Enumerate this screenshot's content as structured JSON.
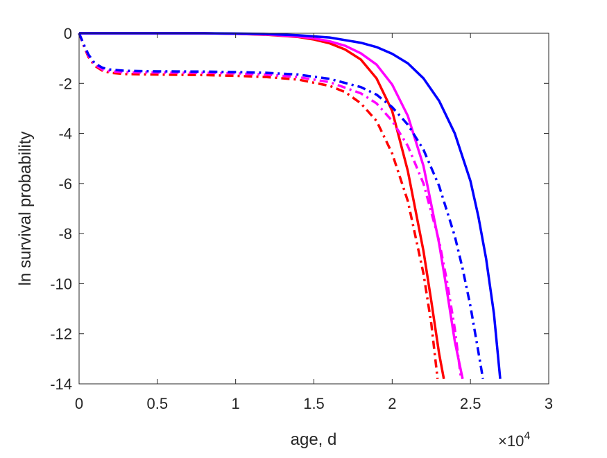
{
  "chart_data": {
    "type": "line",
    "title": "",
    "xlabel": "age, d",
    "ylabel": "ln survival probability",
    "xlim": [
      0,
      30000
    ],
    "ylim": [
      -14,
      0
    ],
    "x_tick_labels": [
      "0",
      "0.5",
      "1",
      "1.5",
      "2",
      "2.5",
      "3"
    ],
    "x_ticks": [
      0,
      5000,
      10000,
      15000,
      20000,
      25000,
      30000
    ],
    "x_exponent": {
      "base": "×10",
      "power": "4"
    },
    "y_tick_labels": [
      "0",
      "-2",
      "-4",
      "-6",
      "-8",
      "-10",
      "-12",
      "-14"
    ],
    "y_ticks": [
      0,
      -2,
      -4,
      -6,
      -8,
      -10,
      -12,
      -14
    ],
    "grid": false,
    "legend": false,
    "series": [
      {
        "color": "#ff0000",
        "style": "solid",
        "x": [
          0,
          2000,
          4000,
          6000,
          8000,
          10000,
          12000,
          14000,
          15000,
          16000,
          17000,
          18000,
          19000,
          20000,
          21000,
          22000,
          22500,
          23000,
          23300
        ],
        "y": [
          0,
          0,
          0,
          0,
          0,
          -0.02,
          -0.06,
          -0.15,
          -0.25,
          -0.4,
          -0.65,
          -1.05,
          -1.8,
          -3.1,
          -5.5,
          -8.7,
          -10.7,
          -12.8,
          -13.8
        ]
      },
      {
        "color": "#ff00ff",
        "style": "solid",
        "x": [
          0,
          2000,
          4000,
          6000,
          8000,
          10000,
          12000,
          14000,
          15000,
          16000,
          17000,
          18000,
          19000,
          20000,
          21000,
          22000,
          23000,
          23500,
          24000,
          24500
        ],
        "y": [
          0,
          0,
          0,
          0,
          0,
          -0.02,
          -0.05,
          -0.13,
          -0.2,
          -0.32,
          -0.5,
          -0.8,
          -1.25,
          -2.05,
          -3.3,
          -5.3,
          -8.4,
          -10.3,
          -12.3,
          -13.8
        ]
      },
      {
        "color": "#0000ff",
        "style": "solid",
        "x": [
          0,
          2000,
          4000,
          6000,
          8000,
          10000,
          12000,
          14000,
          16000,
          18000,
          19000,
          20000,
          21000,
          22000,
          23000,
          24000,
          25000,
          25500,
          26000,
          26500,
          26900
        ],
        "y": [
          0,
          0,
          0,
          0,
          0,
          -0.01,
          -0.03,
          -0.08,
          -0.17,
          -0.38,
          -0.55,
          -0.82,
          -1.2,
          -1.8,
          -2.7,
          -4.0,
          -5.9,
          -7.3,
          -9.0,
          -11.2,
          -13.8
        ]
      },
      {
        "color": "#ff0000",
        "style": "dashdot",
        "x": [
          0,
          300,
          600,
          1000,
          1500,
          2000,
          3000,
          5000,
          8000,
          10000,
          12000,
          14000,
          16000,
          17000,
          18000,
          19000,
          20000,
          21000,
          22000,
          22500,
          22900
        ],
        "y": [
          0,
          -0.5,
          -0.95,
          -1.3,
          -1.5,
          -1.58,
          -1.63,
          -1.65,
          -1.67,
          -1.7,
          -1.75,
          -1.85,
          -2.1,
          -2.35,
          -2.8,
          -3.5,
          -4.8,
          -6.7,
          -9.6,
          -11.6,
          -13.8
        ]
      },
      {
        "color": "#ff00ff",
        "style": "dashdot",
        "x": [
          0,
          300,
          600,
          1000,
          1500,
          2000,
          3000,
          5000,
          8000,
          10000,
          12000,
          14000,
          16000,
          18000,
          19000,
          20000,
          21000,
          22000,
          23000,
          23500,
          24000,
          24400
        ],
        "y": [
          0,
          -0.45,
          -0.9,
          -1.25,
          -1.45,
          -1.52,
          -1.56,
          -1.57,
          -1.58,
          -1.6,
          -1.65,
          -1.75,
          -1.95,
          -2.4,
          -2.8,
          -3.5,
          -4.5,
          -6.0,
          -8.3,
          -9.9,
          -11.8,
          -13.8
        ]
      },
      {
        "color": "#0000ff",
        "style": "dashdot",
        "x": [
          0,
          300,
          600,
          1000,
          1500,
          2000,
          3000,
          5000,
          8000,
          10000,
          12000,
          14000,
          16000,
          18000,
          19000,
          20000,
          21000,
          22000,
          23000,
          24000,
          24500,
          25000,
          25500,
          25800
        ],
        "y": [
          0,
          -0.45,
          -0.85,
          -1.2,
          -1.38,
          -1.45,
          -1.5,
          -1.52,
          -1.53,
          -1.55,
          -1.58,
          -1.65,
          -1.82,
          -2.15,
          -2.45,
          -2.95,
          -3.65,
          -4.65,
          -6.1,
          -8.1,
          -9.4,
          -10.9,
          -12.7,
          -13.8
        ]
      }
    ]
  }
}
